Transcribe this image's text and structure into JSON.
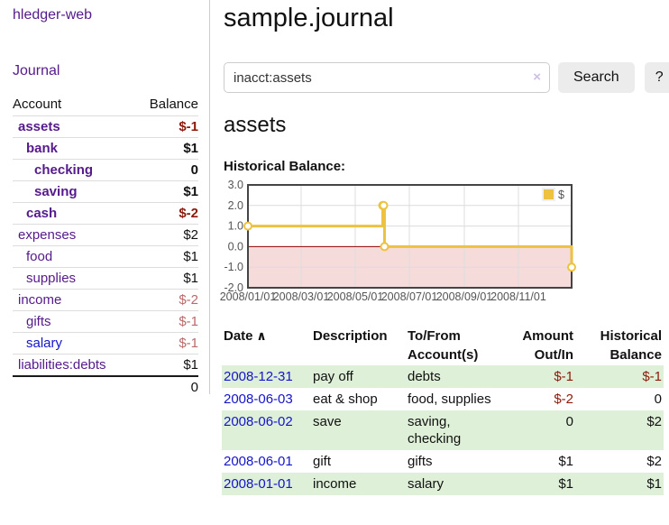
{
  "app": {
    "brand": "hledger-web"
  },
  "sidebar": {
    "nav": {
      "journal": "Journal"
    },
    "accounts": {
      "col_account": "Account",
      "col_balance": "Balance",
      "rows": [
        {
          "name": "assets",
          "balance": "$-1",
          "depth": 0,
          "bold": true,
          "negative": "dark",
          "link": "purple"
        },
        {
          "name": "bank",
          "balance": "$1",
          "depth": 1,
          "bold": true,
          "negative": null,
          "link": "purple"
        },
        {
          "name": "checking",
          "balance": "0",
          "depth": 2,
          "bold": true,
          "negative": null,
          "link": "purple"
        },
        {
          "name": "saving",
          "balance": "$1",
          "depth": 2,
          "bold": true,
          "negative": null,
          "link": "purple"
        },
        {
          "name": "cash",
          "balance": "$-2",
          "depth": 1,
          "bold": true,
          "negative": "dark",
          "link": "purple"
        },
        {
          "name": "expenses",
          "balance": "$2",
          "depth": 0,
          "bold": false,
          "negative": null,
          "link": "purple"
        },
        {
          "name": "food",
          "balance": "$1",
          "depth": 1,
          "bold": false,
          "negative": null,
          "link": "purple"
        },
        {
          "name": "supplies",
          "balance": "$1",
          "depth": 1,
          "bold": false,
          "negative": null,
          "link": "purple"
        },
        {
          "name": "income",
          "balance": "$-2",
          "depth": 0,
          "bold": false,
          "negative": "light",
          "link": "purple"
        },
        {
          "name": "gifts",
          "balance": "$-1",
          "depth": 1,
          "bold": false,
          "negative": "light",
          "link": "purple"
        },
        {
          "name": "salary",
          "balance": "$-1",
          "depth": 1,
          "bold": false,
          "negative": "light",
          "link": "blue"
        },
        {
          "name": "liabilities:debts",
          "balance": "$1",
          "depth": 0,
          "bold": false,
          "negative": null,
          "link": "purple"
        }
      ],
      "total": "0"
    }
  },
  "main": {
    "title": "sample.journal",
    "search": {
      "value": "inacct:assets",
      "clear_icon": "×",
      "search_button": "Search",
      "help_button": "?"
    },
    "account_heading": "assets",
    "chart_label": "Historical Balance:"
  },
  "register": {
    "columns": [
      {
        "key": "date",
        "label": "Date",
        "align": "left",
        "sortable": true,
        "sort_indicator": "∧"
      },
      {
        "key": "description",
        "label": "Description",
        "align": "left",
        "sortable": false
      },
      {
        "key": "accounts",
        "label": "To/From Account(s)",
        "align": "left",
        "sortable": false
      },
      {
        "key": "amount",
        "label": "Amount Out/In",
        "align": "right",
        "sortable": false
      },
      {
        "key": "balance",
        "label": "Historical Balance",
        "align": "right",
        "sortable": false
      }
    ],
    "rows": [
      {
        "date": "2008-12-31",
        "description": "pay off",
        "accounts": "debts",
        "amount": "$-1",
        "balance": "$-1"
      },
      {
        "date": "2008-06-03",
        "description": "eat & shop",
        "accounts": "food, supplies",
        "amount": "$-2",
        "balance": "0"
      },
      {
        "date": "2008-06-02",
        "description": "save",
        "accounts": "saving, checking",
        "amount": "0",
        "balance": "$2"
      },
      {
        "date": "2008-06-01",
        "description": "gift",
        "accounts": "gifts",
        "amount": "$1",
        "balance": "$2"
      },
      {
        "date": "2008-01-01",
        "description": "income",
        "accounts": "salary",
        "amount": "$1",
        "balance": "$1"
      }
    ]
  },
  "chart_data": {
    "type": "line",
    "title": "Historical Balance:",
    "step": true,
    "series": [
      {
        "name": "$",
        "points": [
          {
            "x": "2008-01-01",
            "y": 1
          },
          {
            "x": "2008-06-01",
            "y": 2
          },
          {
            "x": "2008-06-02",
            "y": 2
          },
          {
            "x": "2008-06-03",
            "y": 0
          },
          {
            "x": "2008-12-31",
            "y": -1
          }
        ]
      }
    ],
    "ylim": [
      -2,
      3
    ],
    "yticks": [
      "3.0",
      "2.0",
      "1.0",
      "0.0",
      "-1.0",
      "-2.0"
    ],
    "xticks": [
      "2008/01/01",
      "2008/03/01",
      "2008/05/01",
      "2008/07/01",
      "2008/09/01",
      "2008/11/01"
    ],
    "grid": true,
    "legend_position": "top-right",
    "colors": {
      "line": "#edc240",
      "negative_region": "#f6dbdb",
      "zero_line": "#8b0000",
      "grid": "#dcdcdc",
      "border": "#444444"
    }
  },
  "colors": {
    "link_purple": "#551a8b",
    "link_blue": "#1414cc",
    "negative_dark": "#8c1a0b",
    "negative_light": "#b96a6a",
    "row_green": "#dff0d8"
  }
}
